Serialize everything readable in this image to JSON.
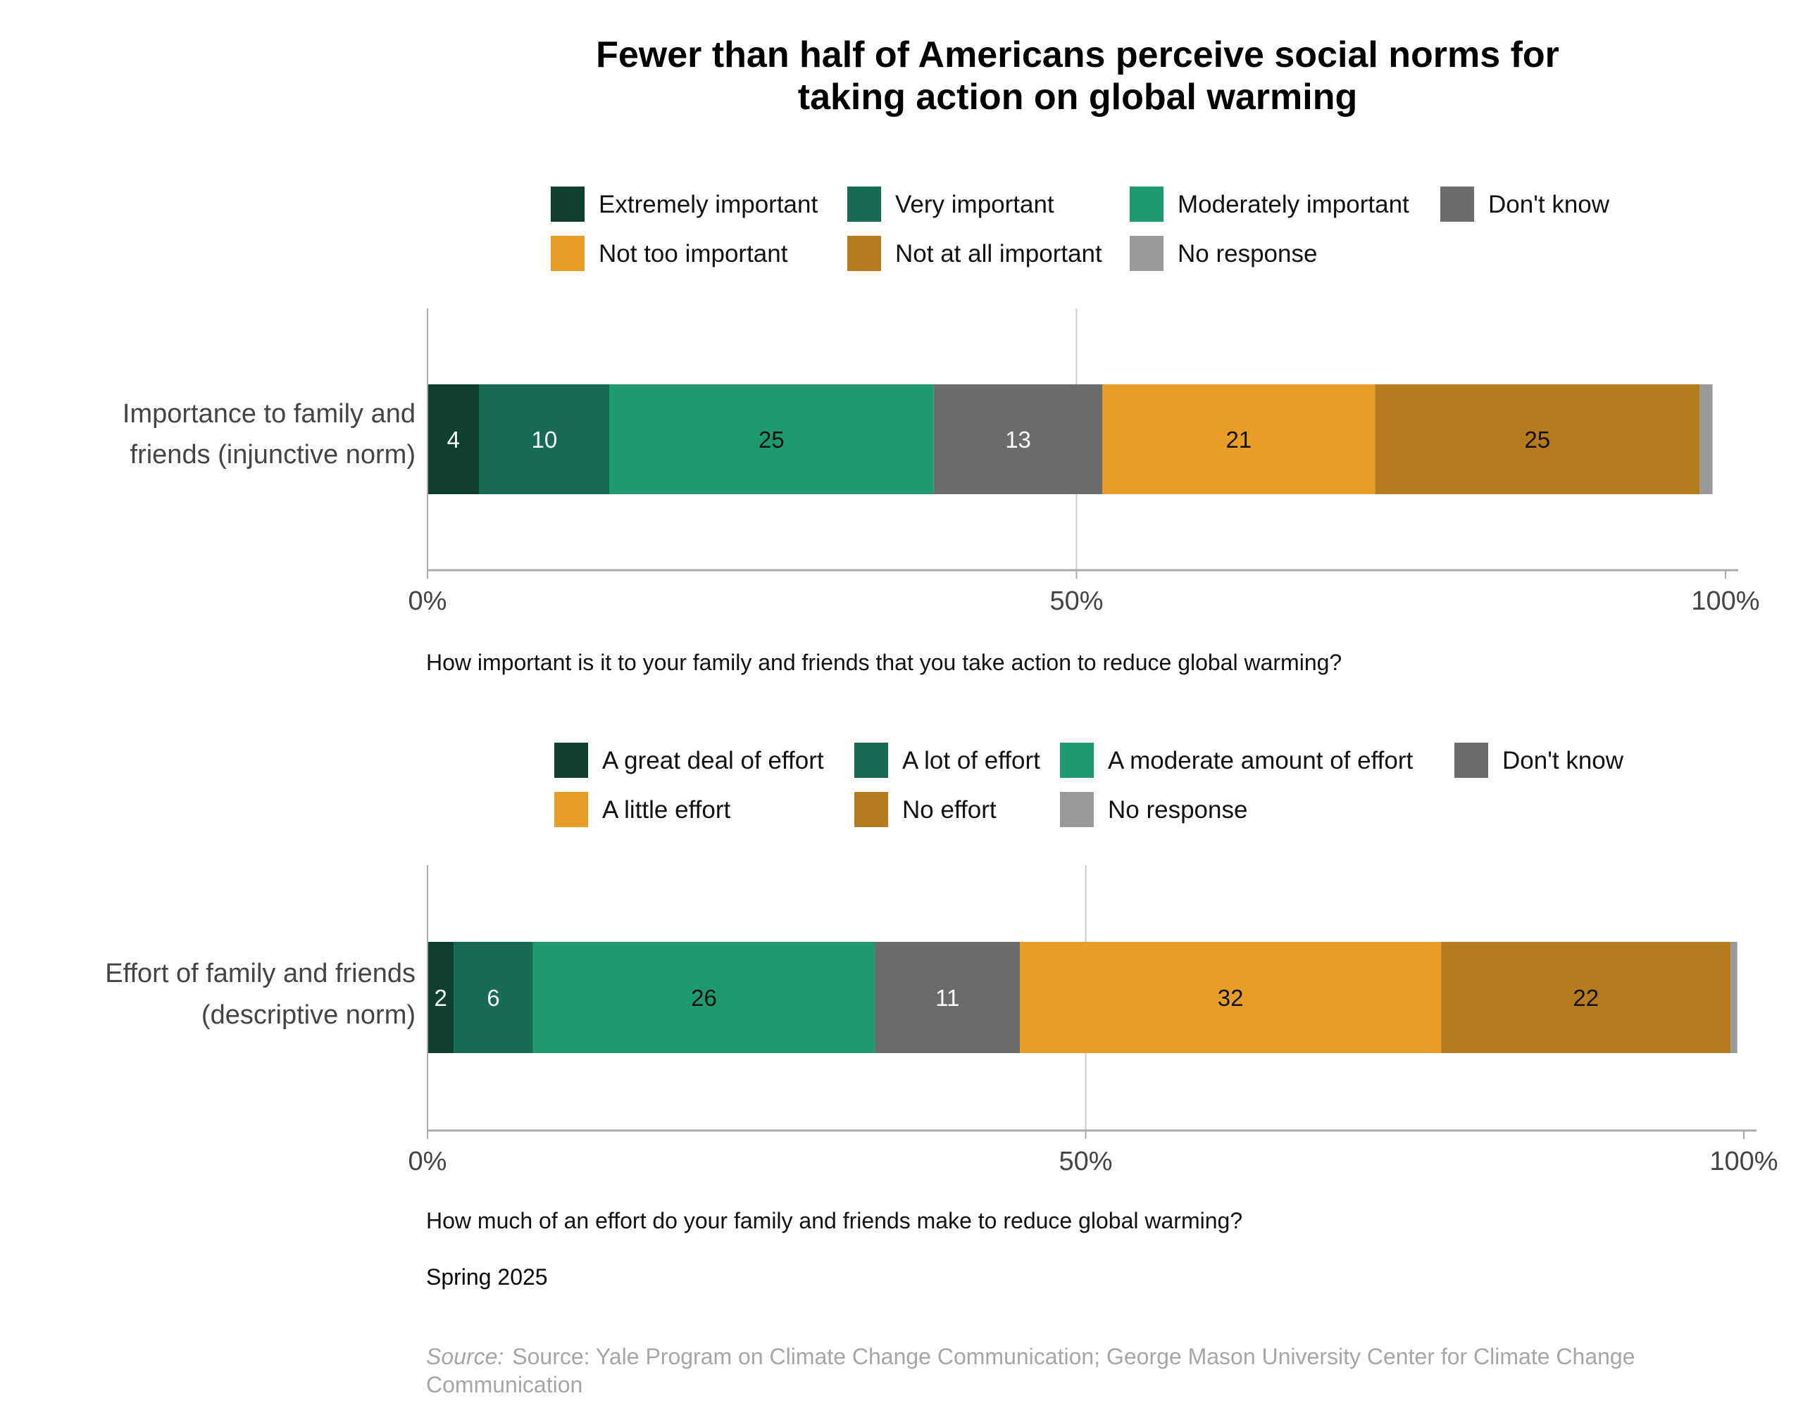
{
  "title_line1": "Fewer than half of Americans perceive social norms for",
  "title_line2": "taking action on global warming",
  "colors": {
    "c1": "#0f3f31",
    "c2": "#176b53",
    "c3": "#1f9a70",
    "dk": "#6b6b6b",
    "c5": "#e89e26",
    "c6": "#b67b1e",
    "nr": "#999999",
    "grid": "#d0d0d0",
    "axis": "#aaaaaa",
    "source": "#a6a6a6",
    "dark_label": "#ffffff",
    "light_label": "#111111"
  },
  "chart_data": [
    {
      "type": "bar",
      "orientation": "horizontal",
      "stacked": true,
      "categories": [
        "Importance to family and friends (injunctive norm)"
      ],
      "category_lines": [
        "Importance to family and",
        "friends (injunctive norm)"
      ],
      "legend": [
        [
          "Extremely important",
          "Very important",
          "Moderately important",
          "Don't know"
        ],
        [
          "Not too important",
          "Not at all important",
          "No response"
        ]
      ],
      "series": [
        {
          "name": "Extremely important",
          "color_key": "c1",
          "values": [
            4
          ],
          "label": "4"
        },
        {
          "name": "Very important",
          "color_key": "c2",
          "values": [
            10
          ],
          "label": "10"
        },
        {
          "name": "Moderately important",
          "color_key": "c3",
          "values": [
            25
          ],
          "label": "25"
        },
        {
          "name": "Don't know",
          "color_key": "dk",
          "values": [
            13
          ],
          "label": "13"
        },
        {
          "name": "Not too important",
          "color_key": "c5",
          "values": [
            21
          ],
          "label": "21"
        },
        {
          "name": "Not at all important",
          "color_key": "c6",
          "values": [
            25
          ],
          "label": "25"
        },
        {
          "name": "No response",
          "color_key": "nr",
          "values": [
            1
          ],
          "label": ""
        }
      ],
      "xlim": [
        0,
        100
      ],
      "ticks": [
        "0%",
        "50%",
        "100%"
      ],
      "caption": "How important is it to your family and friends that you take action to reduce global warming?"
    },
    {
      "type": "bar",
      "orientation": "horizontal",
      "stacked": true,
      "categories": [
        "Effort of family and friends (descriptive norm)"
      ],
      "category_lines": [
        "Effort of family and friends",
        "(descriptive norm)"
      ],
      "legend": [
        [
          "A great deal of effort",
          "A lot of effort",
          "A moderate amount of effort",
          "Don't know"
        ],
        [
          "A little effort",
          "No effort",
          "No response"
        ]
      ],
      "series": [
        {
          "name": "A great deal of effort",
          "color_key": "c1",
          "values": [
            2
          ],
          "label": "2"
        },
        {
          "name": "A lot of effort",
          "color_key": "c2",
          "values": [
            6
          ],
          "label": "6"
        },
        {
          "name": "A moderate amount of effort",
          "color_key": "c3",
          "values": [
            26
          ],
          "label": "26"
        },
        {
          "name": "Don't know",
          "color_key": "dk",
          "values": [
            11
          ],
          "label": "11"
        },
        {
          "name": "A little effort",
          "color_key": "c5",
          "values": [
            32
          ],
          "label": "32"
        },
        {
          "name": "No effort",
          "color_key": "c6",
          "values": [
            22
          ],
          "label": "22"
        },
        {
          "name": "No response",
          "color_key": "nr",
          "values": [
            0.5
          ],
          "label": ""
        }
      ],
      "xlim": [
        0,
        100
      ],
      "ticks": [
        "0%",
        "50%",
        "100%"
      ],
      "caption": "How much of an effort do your family and friends make to reduce global warming?"
    }
  ],
  "date_note": "Spring 2025",
  "source_label": "Source:",
  "source_text": "Source: Yale Program on Climate Change Communication; George Mason University Center for Climate Change",
  "source_text_line2": "Communication"
}
